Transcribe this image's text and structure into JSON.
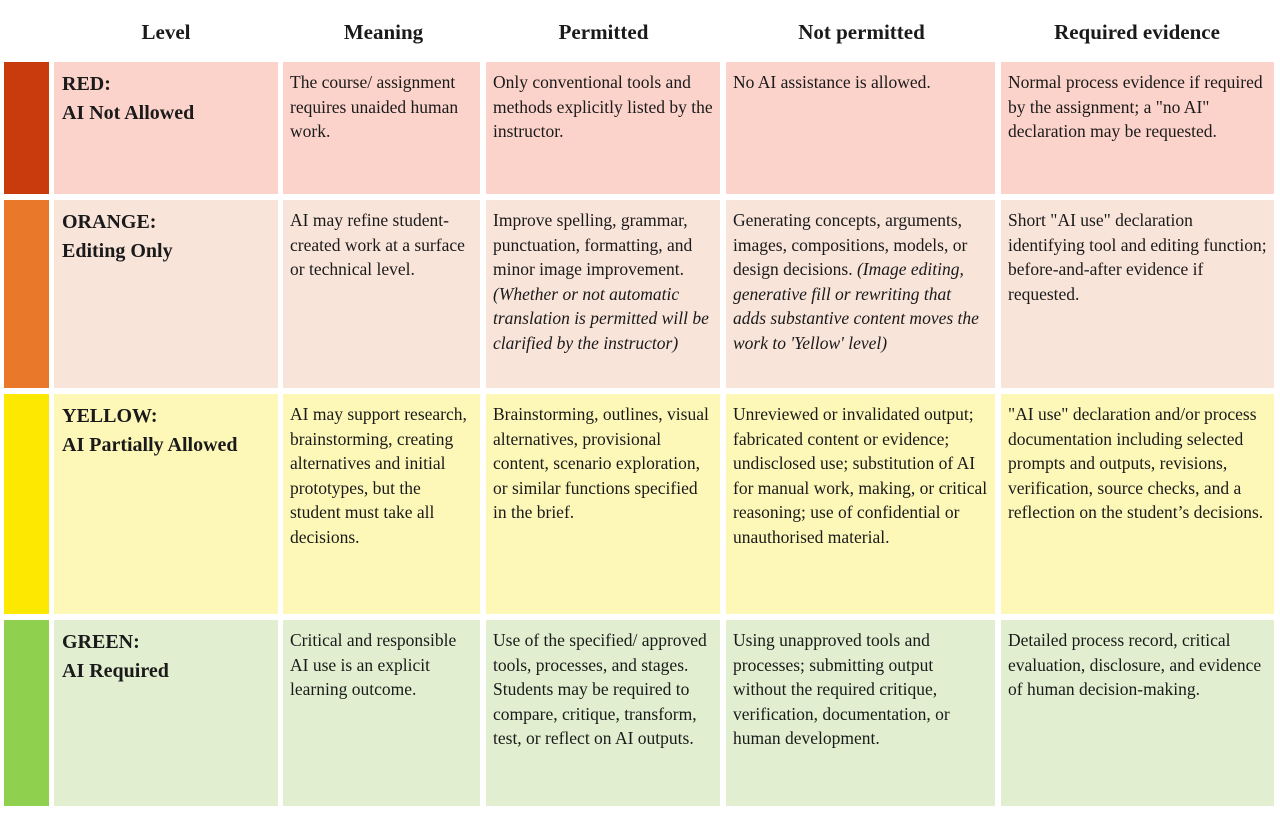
{
  "headers": {
    "level": "Level",
    "meaning": "Meaning",
    "permitted": "Permitted",
    "not_permitted": "Not permitted",
    "required_evidence": "Required evidence"
  },
  "colors": {
    "red_stripe": "#c93a0d",
    "red_fill": "#fcd3cb",
    "orange_stripe": "#e9782a",
    "orange_fill": "#f9e4da",
    "yellow_stripe": "#fde802",
    "yellow_fill": "#fdf8b8",
    "green_stripe": "#8fd14f",
    "green_fill": "#e1efd0"
  },
  "rows": [
    {
      "level_code": "RED:",
      "level_label": "AI Not Allowed",
      "meaning": "The course/ assignment requires unaided human work.",
      "permitted": "Only conventional tools and methods explicitly listed by the instructor.",
      "permitted_note": "",
      "not_permitted": "No AI assistance is allowed.",
      "not_permitted_note": "",
      "evidence": "Normal process evidence if required by the assignment; a \"no AI\" declaration may be requested."
    },
    {
      "level_code": "ORANGE:",
      "level_label": "Editing Only",
      "meaning": "AI may refine student-created work at a surface or technical level.",
      "permitted": "Improve spelling, grammar, punctuation, formatting, and minor image improvement. ",
      "permitted_note": "(Whether or not automatic translation is permitted will be clarified by the instructor)",
      "not_permitted": "Generating concepts, arguments, images, compositions, models, or design decisions. ",
      "not_permitted_note": "(Image editing, generative fill or rewriting that adds substantive content moves the work to 'Yellow' level)",
      "evidence": "Short \"AI use\" declaration identifying tool and editing function; before-and-after evidence if requested."
    },
    {
      "level_code": "YELLOW:",
      "level_label": "AI Partially Allowed",
      "meaning": "AI may support research, brainstorming, creating alternatives and initial prototypes, but the student must take all decisions.",
      "permitted": "Brainstorming, outlines, visual alternatives, provisional content, scenario exploration, or similar functions specified in the brief.",
      "permitted_note": "",
      "not_permitted": "Unreviewed or invalidated output; fabricated content or evidence; undisclosed use; substitution of AI for manual work, making, or critical reasoning; use of confidential or unauthorised material.",
      "not_permitted_note": "",
      "evidence": "\"AI use\" declaration and/or process documentation including selected prompts and outputs, revisions, verification, source checks, and a reflection on the student’s decisions."
    },
    {
      "level_code": "GREEN:",
      "level_label": "AI Required",
      "meaning": "Critical and responsible AI use is an explicit learning outcome.",
      "permitted": "Use of the specified/ approved tools, processes, and stages. Students may be required to compare, critique, transform, test, or reflect on AI outputs.",
      "permitted_note": "",
      "not_permitted": "Using unapproved tools and processes; submitting output without the required critique, verification, documentation, or human development.",
      "not_permitted_note": "",
      "evidence": "Detailed process record, critical evaluation, disclosure, and evidence of human decision-making."
    }
  ]
}
